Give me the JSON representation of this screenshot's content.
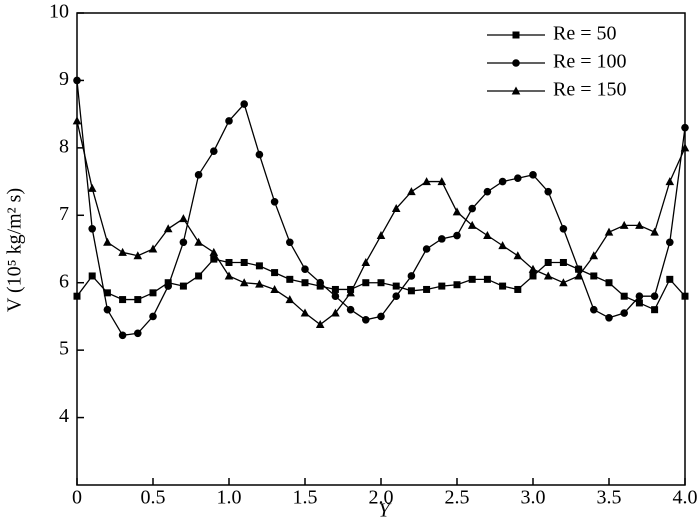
{
  "chart_data": {
    "type": "line",
    "x_label": "Y",
    "y_label": "V (10⁵ kg/m² s)",
    "x": [
      0,
      0.1,
      0.2,
      0.3,
      0.4,
      0.5,
      0.6,
      0.7,
      0.8,
      0.9,
      1.0,
      1.1,
      1.2,
      1.3,
      1.4,
      1.5,
      1.6,
      1.7,
      1.8,
      1.9,
      2.0,
      2.1,
      2.2,
      2.3,
      2.4,
      2.5,
      2.6,
      2.7,
      2.8,
      2.9,
      3.0,
      3.1,
      3.2,
      3.3,
      3.4,
      3.5,
      3.6,
      3.7,
      3.8,
      3.9,
      4.0
    ],
    "series": [
      {
        "name": "Re = 50",
        "color": "#000000",
        "marker": "square",
        "values": [
          5.8,
          6.1,
          5.85,
          5.75,
          5.75,
          5.85,
          6.0,
          5.95,
          6.1,
          6.35,
          6.3,
          6.3,
          6.25,
          6.15,
          6.05,
          6.0,
          5.95,
          5.9,
          5.9,
          6.0,
          6.0,
          5.95,
          5.88,
          5.9,
          5.95,
          5.97,
          6.05,
          6.05,
          5.95,
          5.9,
          6.1,
          6.3,
          6.3,
          6.2,
          6.1,
          6.0,
          5.8,
          5.7,
          5.6,
          6.05,
          5.8
        ]
      },
      {
        "name": "Re = 100",
        "color": "#000000",
        "marker": "circle",
        "values": [
          9.0,
          6.8,
          5.6,
          5.22,
          5.25,
          5.5,
          5.95,
          6.6,
          7.6,
          7.95,
          8.4,
          8.65,
          7.9,
          7.2,
          6.6,
          6.2,
          6.0,
          5.8,
          5.6,
          5.45,
          5.5,
          5.8,
          6.1,
          6.5,
          6.65,
          6.7,
          7.1,
          7.35,
          7.5,
          7.55,
          7.6,
          7.35,
          6.8,
          6.2,
          5.6,
          5.48,
          5.55,
          5.8,
          5.8,
          6.6,
          8.3
        ]
      },
      {
        "name": "Re = 150",
        "color": "#000000",
        "marker": "triangle",
        "values": [
          8.4,
          7.4,
          6.6,
          6.45,
          6.4,
          6.5,
          6.8,
          6.95,
          6.6,
          6.45,
          6.1,
          6.0,
          5.98,
          5.9,
          5.75,
          5.55,
          5.38,
          5.55,
          5.85,
          6.3,
          6.7,
          7.1,
          7.35,
          7.5,
          7.5,
          7.05,
          6.85,
          6.7,
          6.55,
          6.4,
          6.2,
          6.1,
          6.0,
          6.1,
          6.4,
          6.75,
          6.85,
          6.85,
          6.75,
          7.5,
          8.0
        ]
      }
    ],
    "xlim": [
      0,
      4
    ],
    "ylim": [
      3,
      10
    ],
    "xticks": [
      0,
      0.5,
      {
        "value": 1,
        "label": "1.0"
      },
      1.5,
      {
        "value": 2,
        "label": "2.0"
      },
      2.5,
      {
        "value": 3,
        "label": "3.0"
      },
      3.5,
      {
        "value": 4,
        "label": "4.0"
      }
    ],
    "yticks": [
      4,
      5,
      6,
      7,
      8,
      9,
      10
    ],
    "legend": "upper-right",
    "grid": false
  }
}
